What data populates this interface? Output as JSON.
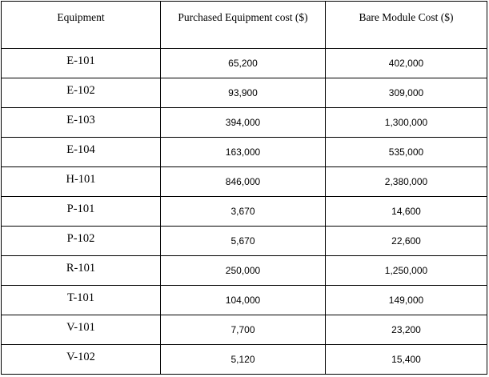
{
  "table": {
    "headers": [
      "Equipment",
      "Purchased Equipment cost ($)",
      "Bare Module Cost ($)"
    ],
    "rows": [
      [
        "E-101",
        "65,200",
        "402,000"
      ],
      [
        "E-102",
        "93,900",
        "309,000"
      ],
      [
        "E-103",
        "394,000",
        "1,300,000"
      ],
      [
        "E-104",
        "163,000",
        "535,000"
      ],
      [
        "H-101",
        "846,000",
        "2,380,000"
      ],
      [
        "P-101",
        "3,670",
        "14,600"
      ],
      [
        "P-102",
        "5,670",
        "22,600"
      ],
      [
        "R-101",
        "250,000",
        "1,250,000"
      ],
      [
        "T-101",
        "104,000",
        "149,000"
      ],
      [
        "V-101",
        "7,700",
        "23,200"
      ],
      [
        "V-102",
        "5,120",
        "15,400"
      ]
    ]
  }
}
